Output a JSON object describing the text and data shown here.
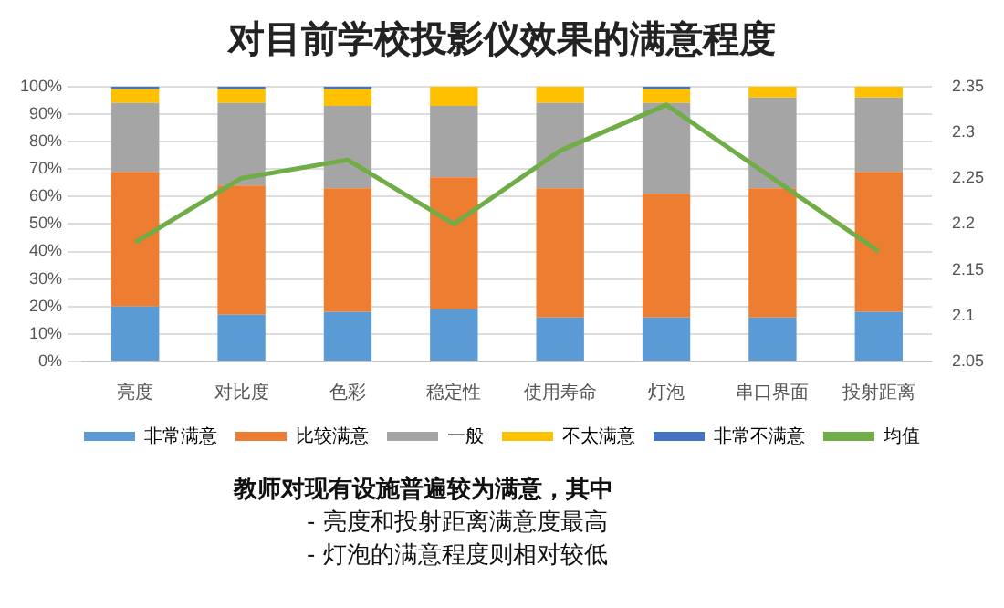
{
  "chart_data": {
    "type": "bar",
    "title": "对目前学校投影仪效果的满意程度",
    "categories": [
      "亮度",
      "对比度",
      "色彩",
      "稳定性",
      "使用寿命",
      "灯泡",
      "串口界面",
      "投射距离"
    ],
    "stacked": true,
    "series": [
      {
        "name": "非常满意",
        "color": "#5b9bd5",
        "values": [
          20,
          17,
          18,
          19,
          16,
          16,
          16,
          18
        ]
      },
      {
        "name": "比较满意",
        "color": "#ed7d31",
        "values": [
          49,
          47,
          45,
          48,
          47,
          45,
          47,
          51
        ]
      },
      {
        "name": "一般",
        "color": "#a5a5a5",
        "values": [
          25,
          30,
          30,
          26,
          31,
          33,
          33,
          27
        ]
      },
      {
        "name": "不太满意",
        "color": "#ffc000",
        "values": [
          5,
          5,
          6,
          7,
          6,
          5,
          4,
          4
        ]
      },
      {
        "name": "非常不满意",
        "color": "#4472c4",
        "values": [
          1,
          1,
          1,
          0,
          0,
          1,
          0,
          0
        ]
      },
      {
        "name": "均值",
        "type": "line",
        "axis": "y2",
        "color": "#70ad47",
        "values": [
          2.18,
          2.25,
          2.27,
          2.2,
          2.28,
          2.33,
          2.25,
          2.17
        ]
      }
    ],
    "ylim": [
      0,
      100
    ],
    "yticks": [
      {
        "value": 0,
        "label": "0%"
      },
      {
        "value": 10,
        "label": "10%"
      },
      {
        "value": 20,
        "label": "20%"
      },
      {
        "value": 30,
        "label": "30%"
      },
      {
        "value": 40,
        "label": "40%"
      },
      {
        "value": 50,
        "label": "50%"
      },
      {
        "value": 60,
        "label": "60%"
      },
      {
        "value": 70,
        "label": "70%"
      },
      {
        "value": 80,
        "label": "80%"
      },
      {
        "value": 90,
        "label": "90%"
      },
      {
        "value": 100,
        "label": "100%"
      }
    ],
    "y2lim": [
      2.05,
      2.35
    ],
    "y2ticks": [
      2.05,
      2.1,
      2.15,
      2.2,
      2.25,
      2.3,
      2.35
    ],
    "grid": "y",
    "legend": "bottom",
    "marker": "none",
    "annotations": [
      "教师对现有设施普遍较为满意，其中",
      "- 亮度和投射距离满意度最高",
      "- 灯泡的满意程度则相对较低"
    ]
  }
}
